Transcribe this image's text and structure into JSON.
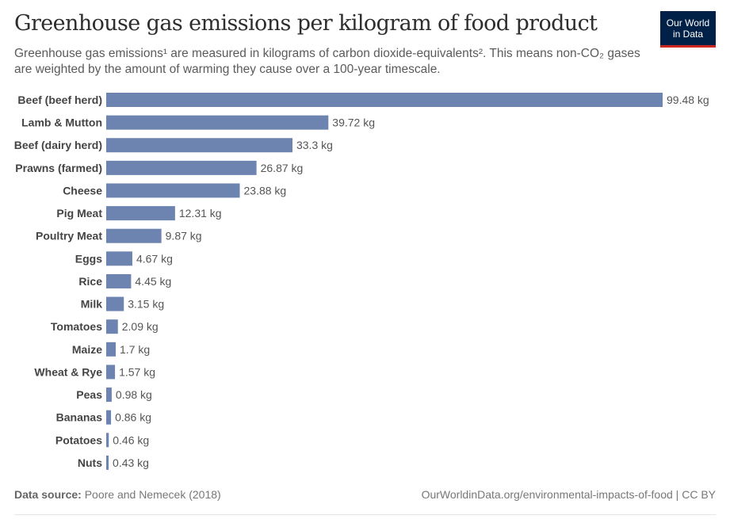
{
  "title": "Greenhouse gas emissions per kilogram of food product",
  "subtitle": "Greenhouse gas emissions¹ are measured in kilograms of carbon dioxide-equivalents². This means non-CO₂ gases are weighted by the amount of warming they cause over a 100-year timescale.",
  "logo": {
    "line1": "Our World",
    "line2": "in Data"
  },
  "footer": {
    "source_label": "Data source:",
    "source": "Poore and Nemecek (2018)",
    "url": "OurWorldinData.org/environmental-impacts-of-food | CC BY"
  },
  "colors": {
    "bar": "#6d84b0"
  },
  "chart_data": {
    "type": "bar",
    "orientation": "horizontal",
    "title": "Greenhouse gas emissions per kilogram of food product",
    "unit": "kg",
    "categories": [
      "Beef (beef herd)",
      "Lamb & Mutton",
      "Beef (dairy herd)",
      "Prawns (farmed)",
      "Cheese",
      "Pig Meat",
      "Poultry Meat",
      "Eggs",
      "Rice",
      "Milk",
      "Tomatoes",
      "Maize",
      "Wheat & Rye",
      "Peas",
      "Bananas",
      "Potatoes",
      "Nuts"
    ],
    "values": [
      99.48,
      39.72,
      33.3,
      26.87,
      23.88,
      12.31,
      9.87,
      4.67,
      4.45,
      3.15,
      2.09,
      1.7,
      1.57,
      0.98,
      0.86,
      0.46,
      0.43
    ],
    "value_labels": [
      "99.48 kg",
      "39.72 kg",
      "33.3 kg",
      "26.87 kg",
      "23.88 kg",
      "12.31 kg",
      "9.87 kg",
      "4.67 kg",
      "4.45 kg",
      "3.15 kg",
      "2.09 kg",
      "1.7 kg",
      "1.57 kg",
      "0.98 kg",
      "0.86 kg",
      "0.46 kg",
      "0.43 kg"
    ],
    "xlim": [
      0,
      99.48
    ],
    "grid": false
  }
}
